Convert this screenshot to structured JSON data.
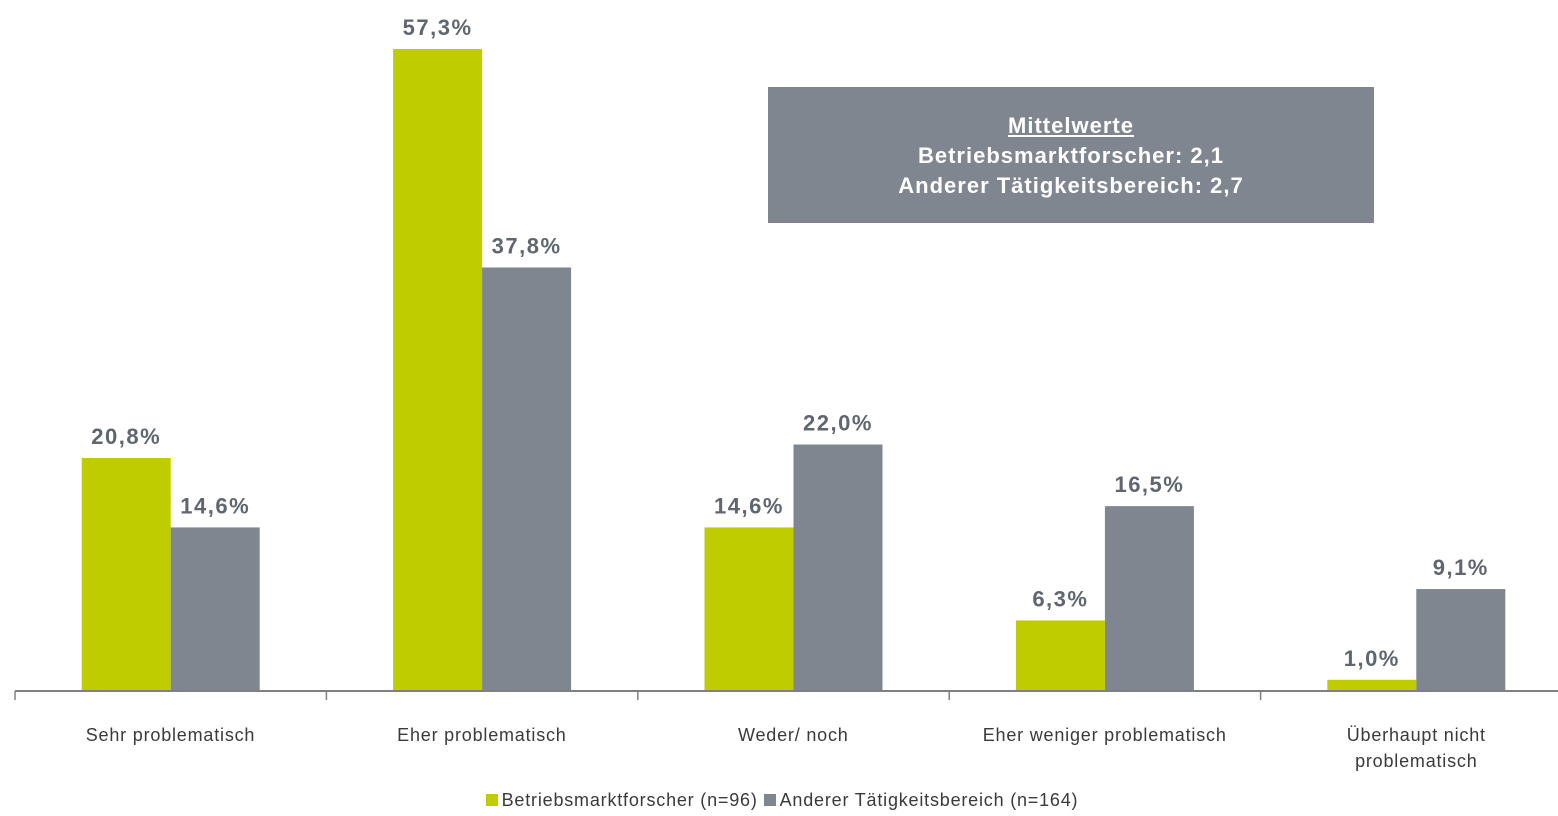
{
  "chart_data": {
    "type": "bar",
    "categories": [
      "Sehr problematisch",
      "Eher problematisch",
      "Weder/ noch",
      "Eher weniger problematisch",
      "Überhaupt nicht problematisch"
    ],
    "series": [
      {
        "name": "Betriebsmarktforscher (n=96)",
        "color": "#bfcd00",
        "values": [
          20.8,
          57.3,
          14.6,
          6.3,
          1.0
        ],
        "value_labels": [
          "20,8%",
          "57,3%",
          "14,6%",
          "6,3%",
          "1,0%"
        ]
      },
      {
        "name": "Anderer Tätigkeitsbereich (n=164)",
        "color": "#80868f",
        "values": [
          14.6,
          37.8,
          22.0,
          16.5,
          9.1
        ],
        "value_labels": [
          "14,6%",
          "37,8%",
          "22,0%",
          "16,5%",
          "9,1%"
        ]
      }
    ],
    "annotation": {
      "title": "Mittelwerte",
      "lines": [
        "Betriebsmarktforscher: 2,1",
        "Anderer Tätigkeitsbereich: 2,7"
      ]
    },
    "legend": "bottom"
  }
}
